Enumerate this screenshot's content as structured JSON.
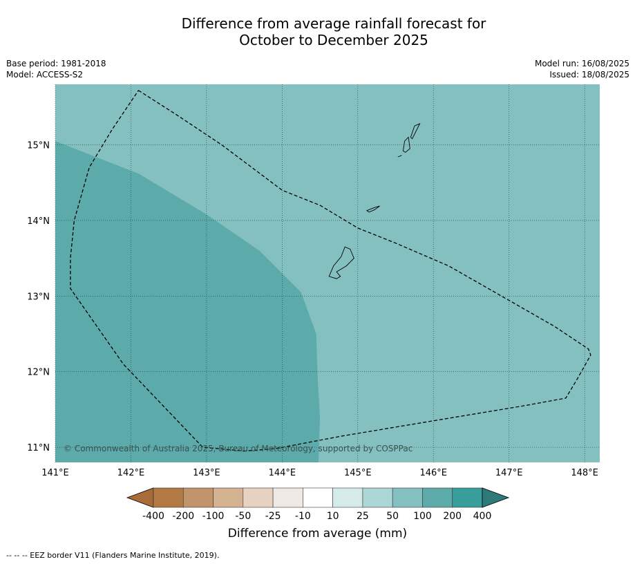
{
  "title": {
    "line1": "Difference from average rainfall forecast for",
    "line2": "October to December 2025"
  },
  "meta": {
    "base_period": "Base period: 1981-2018",
    "model": "Model: ACCESS-S2",
    "model_run": "Model run: 16/08/2025",
    "issued": "Issued: 18/08/2025"
  },
  "map": {
    "lon_range": [
      141,
      148.2
    ],
    "lat_range": [
      10.8,
      15.8
    ],
    "lon_ticks": [
      141,
      142,
      143,
      144,
      145,
      146,
      147,
      148
    ],
    "lat_ticks": [
      11,
      12,
      13,
      14,
      15
    ],
    "lon_labels": [
      "141°E",
      "142°E",
      "143°E",
      "144°E",
      "145°E",
      "146°E",
      "147°E",
      "148°E"
    ],
    "lat_labels": [
      "11°N",
      "12°N",
      "13°N",
      "14°N",
      "15°N"
    ],
    "copyright": "© Commonwealth of Australia 2025, Bureau of Meteorology, supported by COSPPac",
    "colors": {
      "band_50_100": "#84c0bf",
      "band_100_200": "#5daaab",
      "grid": "#1a3a3a"
    },
    "zone_100_200_boundary": [
      [
        141.0,
        15.05
      ],
      [
        142.1,
        14.62
      ],
      [
        143.0,
        14.08
      ],
      [
        143.7,
        13.6
      ],
      [
        144.25,
        13.05
      ],
      [
        144.45,
        12.5
      ],
      [
        144.47,
        11.9
      ],
      [
        144.5,
        11.4
      ],
      [
        144.48,
        10.8
      ]
    ],
    "eez_border": [
      [
        142.1,
        15.72
      ],
      [
        142.6,
        15.4
      ],
      [
        143.2,
        15.0
      ],
      [
        144.0,
        14.4
      ],
      [
        144.5,
        14.2
      ],
      [
        145.0,
        13.9
      ],
      [
        145.5,
        13.7
      ],
      [
        146.2,
        13.4
      ],
      [
        146.9,
        13.0
      ],
      [
        147.6,
        12.6
      ],
      [
        148.05,
        12.3
      ],
      [
        148.08,
        12.22
      ],
      [
        147.9,
        11.9
      ],
      [
        147.75,
        11.65
      ],
      [
        147.2,
        11.55
      ],
      [
        146.0,
        11.35
      ],
      [
        144.8,
        11.15
      ],
      [
        143.9,
        10.98
      ],
      [
        143.5,
        10.95
      ],
      [
        142.95,
        11.0
      ],
      [
        141.9,
        12.1
      ],
      [
        141.2,
        13.1
      ],
      [
        141.2,
        13.5
      ],
      [
        141.25,
        14.0
      ],
      [
        141.45,
        14.7
      ],
      [
        141.75,
        15.2
      ],
      [
        142.1,
        15.72
      ]
    ],
    "islands": [
      {
        "name": "Guam",
        "outline": [
          [
            144.62,
            13.26
          ],
          [
            144.68,
            13.4
          ],
          [
            144.78,
            13.52
          ],
          [
            144.83,
            13.65
          ],
          [
            144.9,
            13.62
          ],
          [
            144.95,
            13.5
          ],
          [
            144.85,
            13.4
          ],
          [
            144.72,
            13.32
          ],
          [
            144.77,
            13.26
          ],
          [
            144.72,
            13.23
          ]
        ]
      },
      {
        "name": "Rota",
        "outline": [
          [
            145.12,
            14.13
          ],
          [
            145.22,
            14.17
          ],
          [
            145.29,
            14.19
          ],
          [
            145.22,
            14.14
          ],
          [
            145.15,
            14.11
          ]
        ]
      },
      {
        "name": "Tinian",
        "outline": [
          [
            145.6,
            14.92
          ],
          [
            145.62,
            15.05
          ],
          [
            145.67,
            15.1
          ],
          [
            145.69,
            14.95
          ],
          [
            145.63,
            14.9
          ]
        ]
      },
      {
        "name": "Saipan",
        "outline": [
          [
            145.7,
            15.1
          ],
          [
            145.75,
            15.25
          ],
          [
            145.82,
            15.28
          ],
          [
            145.76,
            15.16
          ],
          [
            145.72,
            15.08
          ]
        ]
      },
      {
        "name": "Aguijan",
        "outline": [
          [
            145.53,
            14.84
          ],
          [
            145.58,
            14.86
          ]
        ]
      }
    ]
  },
  "colorbar": {
    "title": "Difference from average (mm)",
    "labels": [
      "-400",
      "-200",
      "-100",
      "-50",
      "-25",
      "-10",
      "10",
      "25",
      "50",
      "100",
      "200",
      "400"
    ],
    "colors": [
      "#a86c36",
      "#b37a43",
      "#c2946b",
      "#d5b292",
      "#e7d2c1",
      "#efe9e5",
      "#ffffff",
      "#d5ebea",
      "#acd6d5",
      "#84c0bf",
      "#5daaab",
      "#389d9b",
      "#2f7a79"
    ]
  },
  "footnote": "-- -- -- EEZ border V11 (Flanders Marine Institute, 2019)."
}
